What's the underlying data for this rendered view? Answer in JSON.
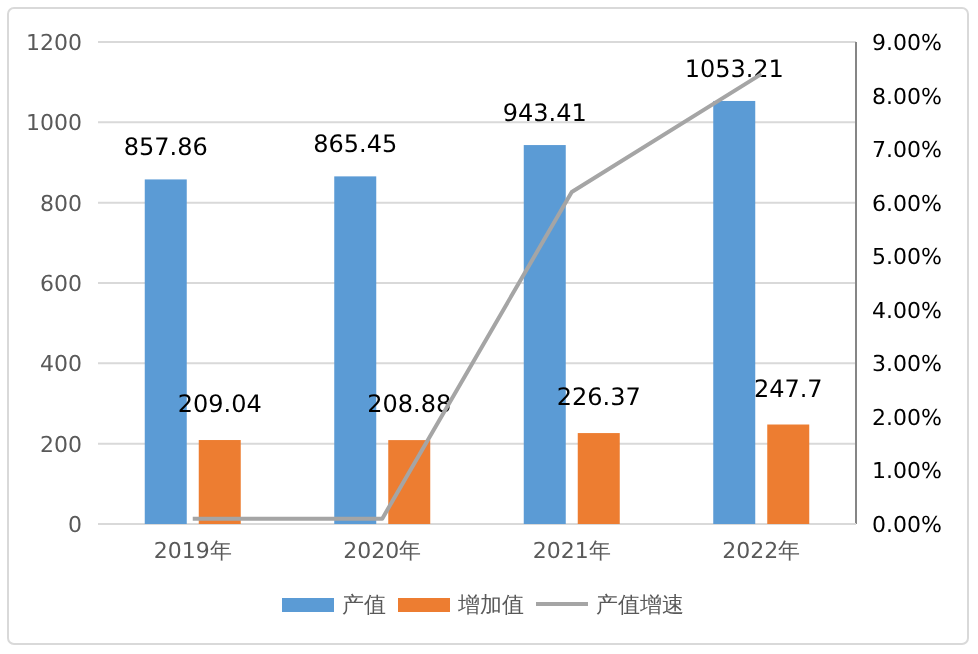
{
  "chart_data": {
    "type": "bar",
    "categories": [
      "2019年",
      "2020年",
      "2021年",
      "2022年"
    ],
    "series": [
      {
        "name": "产值",
        "color": "#5b9bd5",
        "values": [
          857.86,
          865.45,
          943.41,
          1053.21
        ],
        "value_labels": [
          "857.86",
          "865.45",
          "943.41",
          "1053.21"
        ]
      },
      {
        "name": "增加值",
        "color": "#ed7d31",
        "values": [
          209.04,
          208.88,
          226.37,
          247.7
        ],
        "value_labels": [
          "209.04",
          "208.88",
          "226.37",
          "247.7"
        ]
      },
      {
        "name": "产值增速",
        "type": "line",
        "axis": "y2",
        "color": "#a5a5a5",
        "values": [
          0.1,
          0.1,
          6.2,
          8.4
        ]
      }
    ],
    "ylim": [
      0,
      1200
    ],
    "yticks": [
      0,
      200,
      400,
      600,
      800,
      1000,
      1200
    ],
    "y2lim": [
      0,
      9
    ],
    "y2ticks": [
      {
        "value": 0,
        "label": "0.00%"
      },
      {
        "value": 1,
        "label": "1.00%"
      },
      {
        "value": 2,
        "label": "2.00%"
      },
      {
        "value": 3,
        "label": "3.00%"
      },
      {
        "value": 4,
        "label": "4.00%"
      },
      {
        "value": 5,
        "label": "5.00%"
      },
      {
        "value": 6,
        "label": "6.00%"
      },
      {
        "value": 7,
        "label": "7.00%"
      },
      {
        "value": 8,
        "label": "8.00%"
      },
      {
        "value": 9,
        "label": "9.00%"
      }
    ],
    "grid": "y",
    "legend": "bottom",
    "marker": "none",
    "line_style": "solid"
  }
}
